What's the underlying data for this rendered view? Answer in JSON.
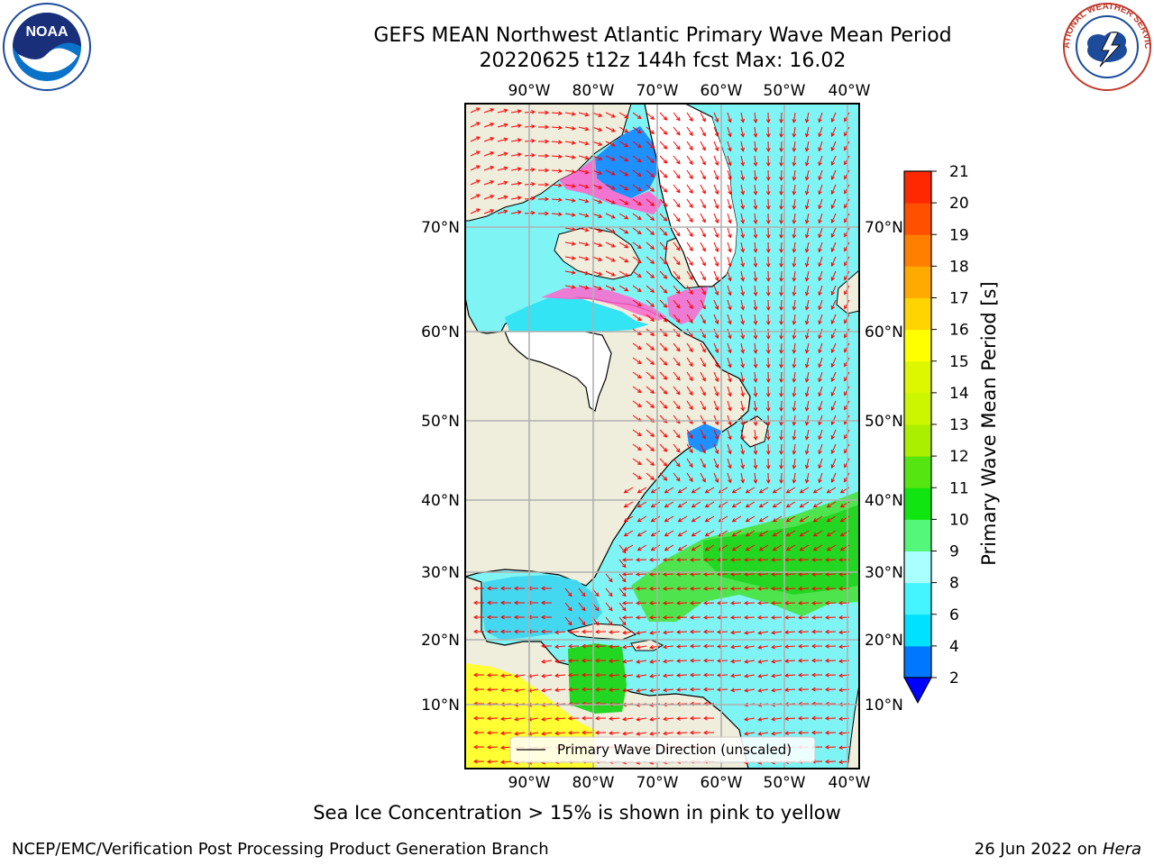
{
  "title_line1": "GEFS MEAN Northwest Atlantic Primary Wave Mean Period",
  "title_line2": "20220625 t12z 144h fcst   Max: 16.02",
  "logos": {
    "left": "noaa-logo",
    "left_text": "NOAA",
    "right": "nws-logo",
    "right_text": "NATIONAL WEATHER SERVICE"
  },
  "map": {
    "lon_labels_top": [
      "90°W",
      "80°W",
      "70°W",
      "60°W",
      "50°W",
      "40°W"
    ],
    "lon_labels_bottom": [
      "90°W",
      "80°W",
      "70°W",
      "60°W",
      "50°W",
      "40°W"
    ],
    "lat_labels": [
      "70°N",
      "60°N",
      "50°N",
      "40°N",
      "30°N",
      "20°N",
      "10°N"
    ],
    "legend_label": "Primary Wave Direction (unscaled)",
    "colors": {
      "land": "#efeddc",
      "ice_free_white": "#ffffff",
      "cyan": "#7ff4f4",
      "green": "#33e433",
      "yellow": "#ffff33",
      "pink": "#ff66cc",
      "arrow": "#ff0000"
    }
  },
  "colorbar": {
    "label": "Primary Wave Mean Period [s]",
    "ticks": [
      "2",
      "4",
      "6",
      "8",
      "9",
      "10",
      "11",
      "12",
      "13",
      "14",
      "15",
      "16",
      "17",
      "18",
      "19",
      "20",
      "21"
    ],
    "colors": [
      "#0077ff",
      "#00e1ff",
      "#44f4ff",
      "#aaffff",
      "#55f77a",
      "#11e511",
      "#55e611",
      "#aaee00",
      "#ccf500",
      "#ddf700",
      "#ffff00",
      "#ffd400",
      "#ffaa00",
      "#ff8000",
      "#ff5000",
      "#ff2800",
      "#ff0000"
    ],
    "under_color": "#0000ff"
  },
  "footer": {
    "ice_note": "Sea Ice Concentration > 15% is shown in pink to yellow",
    "left": "NCEP/EMC/Verification Post Processing Product Generation Branch",
    "right_date": "26 Jun 2022 on",
    "right_host": "Hera"
  }
}
